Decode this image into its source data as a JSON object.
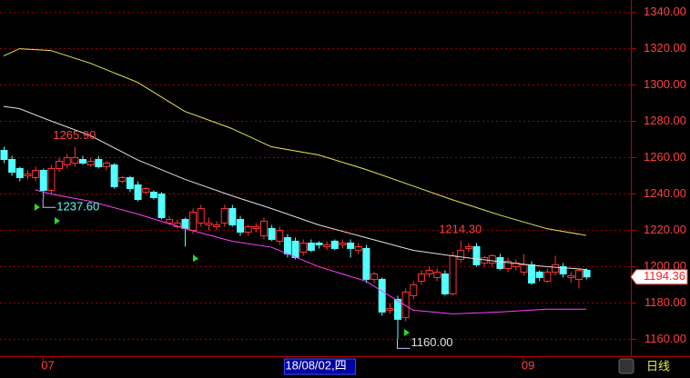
{
  "chart_data": {
    "type": "candlestick",
    "categories": [
      null,
      null,
      null,
      null,
      null,
      "07",
      null,
      null,
      null,
      null,
      null,
      null,
      null,
      null,
      null,
      null,
      null,
      null,
      null,
      null,
      null,
      null,
      null,
      null,
      null,
      null,
      null,
      null,
      null,
      null,
      null,
      null,
      null,
      null,
      null,
      null,
      "18/08/02,四",
      null,
      null,
      null,
      null,
      null,
      null,
      null,
      null,
      null,
      null,
      null,
      null,
      null,
      null,
      null,
      null,
      null,
      null,
      null,
      null,
      null,
      null,
      null,
      null,
      null,
      null,
      null,
      null,
      null,
      "09",
      null,
      null,
      null,
      null,
      null,
      null,
      null,
      null
    ],
    "open": [
      1264,
      1259,
      1254,
      1250,
      1249,
      1253,
      1242,
      1254,
      1256,
      1257,
      1259,
      1256,
      1259,
      1255,
      1256,
      1247,
      1249,
      1245,
      1241,
      1241,
      1240,
      1224,
      1222,
      1226,
      1220,
      1224,
      1223,
      1222,
      1224,
      1232,
      1226,
      1219,
      1221,
      1217,
      1221,
      1214,
      1216,
      1214,
      1208,
      1213,
      1213,
      1211,
      1214,
      1212,
      1213,
      1209,
      1210,
      1193,
      1193,
      1176,
      1182,
      1172,
      1184,
      1192,
      1196,
      1194,
      1196,
      1185,
      1204,
      1210,
      1211,
      1202,
      1202,
      1205,
      1199,
      1200,
      1197,
      1201,
      1197,
      1192,
      1197,
      1200,
      1194,
      1193,
      1198
    ],
    "high": [
      1266,
      1261,
      1255,
      1253,
      1255,
      1254,
      1256,
      1260,
      1262,
      1265.9,
      1261,
      1260,
      1261,
      1258,
      1257,
      1250,
      1250,
      1247,
      1244,
      1242,
      1241,
      1228,
      1226,
      1227,
      1232,
      1234,
      1227,
      1225,
      1234,
      1234,
      1228,
      1223,
      1224,
      1227,
      1223,
      1222,
      1218,
      1216,
      1215,
      1215,
      1214,
      1214,
      1215,
      1215,
      1215,
      1213,
      1212,
      1197,
      1194,
      1180,
      1184,
      1188,
      1192,
      1198,
      1200,
      1199,
      1198,
      1208,
      1214.3,
      1213,
      1213,
      1206,
      1207,
      1207,
      1205,
      1204,
      1207,
      1203,
      1198,
      1199,
      1206,
      1202,
      1197,
      1199,
      1199
    ],
    "low": [
      1257,
      1250,
      1247,
      1248,
      1247,
      1237.6,
      1240,
      1252,
      1254,
      1255,
      1256,
      1255,
      1254,
      1253,
      1243,
      1246,
      1241,
      1236,
      1240,
      1237,
      1226,
      1223,
      1221,
      1211,
      1218,
      1222,
      1220,
      1220,
      1222,
      1222,
      1217,
      1217,
      1219,
      1215,
      1214,
      1212,
      1205,
      1204,
      1206,
      1208,
      1210,
      1209,
      1209,
      1210,
      1205,
      1207,
      1191,
      1191,
      1173,
      1174,
      1160,
      1170,
      1182,
      1190,
      1194,
      1192,
      1184,
      1184,
      1202,
      1208,
      1200,
      1200,
      1200,
      1198,
      1197,
      1198,
      1195,
      1190,
      1192,
      1191,
      1195,
      1194,
      1191,
      1188,
      1193
    ],
    "close": [
      1259,
      1252,
      1249,
      1251,
      1253,
      1242,
      1254,
      1258,
      1260,
      1260,
      1257,
      1258,
      1255,
      1257,
      1244,
      1249,
      1243,
      1237,
      1243,
      1238,
      1227,
      1226,
      1224,
      1221,
      1230,
      1232,
      1224,
      1223,
      1232,
      1223,
      1219,
      1222,
      1222,
      1225,
      1215,
      1220,
      1207,
      1205,
      1213,
      1209,
      1212,
      1212,
      1210,
      1213,
      1210,
      1211,
      1193,
      1196,
      1175,
      1177,
      1171,
      1186,
      1190,
      1196,
      1198,
      1197,
      1185,
      1206,
      1209,
      1211,
      1201,
      1205,
      1206,
      1199,
      1203,
      1202,
      1201,
      1191,
      1194,
      1197,
      1201,
      1196,
      1195,
      1198,
      1194.36
    ],
    "up_color": "#ff3232",
    "down_color": "#54ffff",
    "series": [
      {
        "color": "#e8e850",
        "x": [
          0,
          2,
          6,
          11,
          17,
          23,
          29,
          34,
          40,
          46,
          52,
          57,
          63,
          69,
          74
        ],
        "values": [
          1316,
          1320,
          1319,
          1312,
          1301.5,
          1285.5,
          1276,
          1266,
          1261.5,
          1253.5,
          1244.4,
          1236.8,
          1228.4,
          1220.9,
          1217.2
        ]
      },
      {
        "color": "#e0e0e0",
        "x": [
          0,
          2,
          6,
          11,
          17,
          23,
          29,
          34,
          40,
          46,
          52,
          57,
          63,
          69,
          74
        ],
        "values": [
          1288.2,
          1287,
          1280.2,
          1272.2,
          1258.8,
          1248.1,
          1239,
          1232,
          1223,
          1216,
          1209,
          1205.9,
          1202.7,
          1200,
          1198.5
        ]
      },
      {
        "color": "#ff40ff",
        "x": [
          4,
          6,
          11,
          17,
          23,
          29,
          34,
          40,
          46,
          52,
          57,
          63,
          69,
          74
        ],
        "values": [
          1242.3,
          1240,
          1236,
          1229,
          1221,
          1214,
          1210.7,
          1200,
          1192,
          1176,
          1174,
          1175,
          1176.6,
          1176.6
        ]
      }
    ],
    "annotations": [
      {
        "value": 1265.9,
        "label": "1265.90",
        "at": "high"
      },
      {
        "value": 1237.6,
        "label": "1237.60",
        "at": "low"
      },
      {
        "value": 1214.3,
        "label": "1214.30",
        "at": "high"
      },
      {
        "value": 1160,
        "label": "1160.00",
        "at": "low"
      }
    ],
    "last_price": {
      "value": 1194.36,
      "label": "1194.36"
    },
    "period": "日线",
    "ylim": [
      1150.7,
      1346.8
    ],
    "yticks": [
      {
        "value": 1160,
        "label": "1160.00"
      },
      {
        "value": 1180,
        "label": "1180.00"
      },
      {
        "value": 1200,
        "label": "1200.00"
      },
      {
        "value": 1220,
        "label": "1220.00"
      },
      {
        "value": 1240,
        "label": "1240.00"
      },
      {
        "value": 1260,
        "label": "1260.00"
      },
      {
        "value": 1280,
        "label": "1280.00"
      },
      {
        "value": 1300,
        "label": "1300.00"
      },
      {
        "value": 1320,
        "label": "1320.00"
      },
      {
        "value": 1340,
        "label": "1340.00"
      }
    ],
    "grid": true
  }
}
